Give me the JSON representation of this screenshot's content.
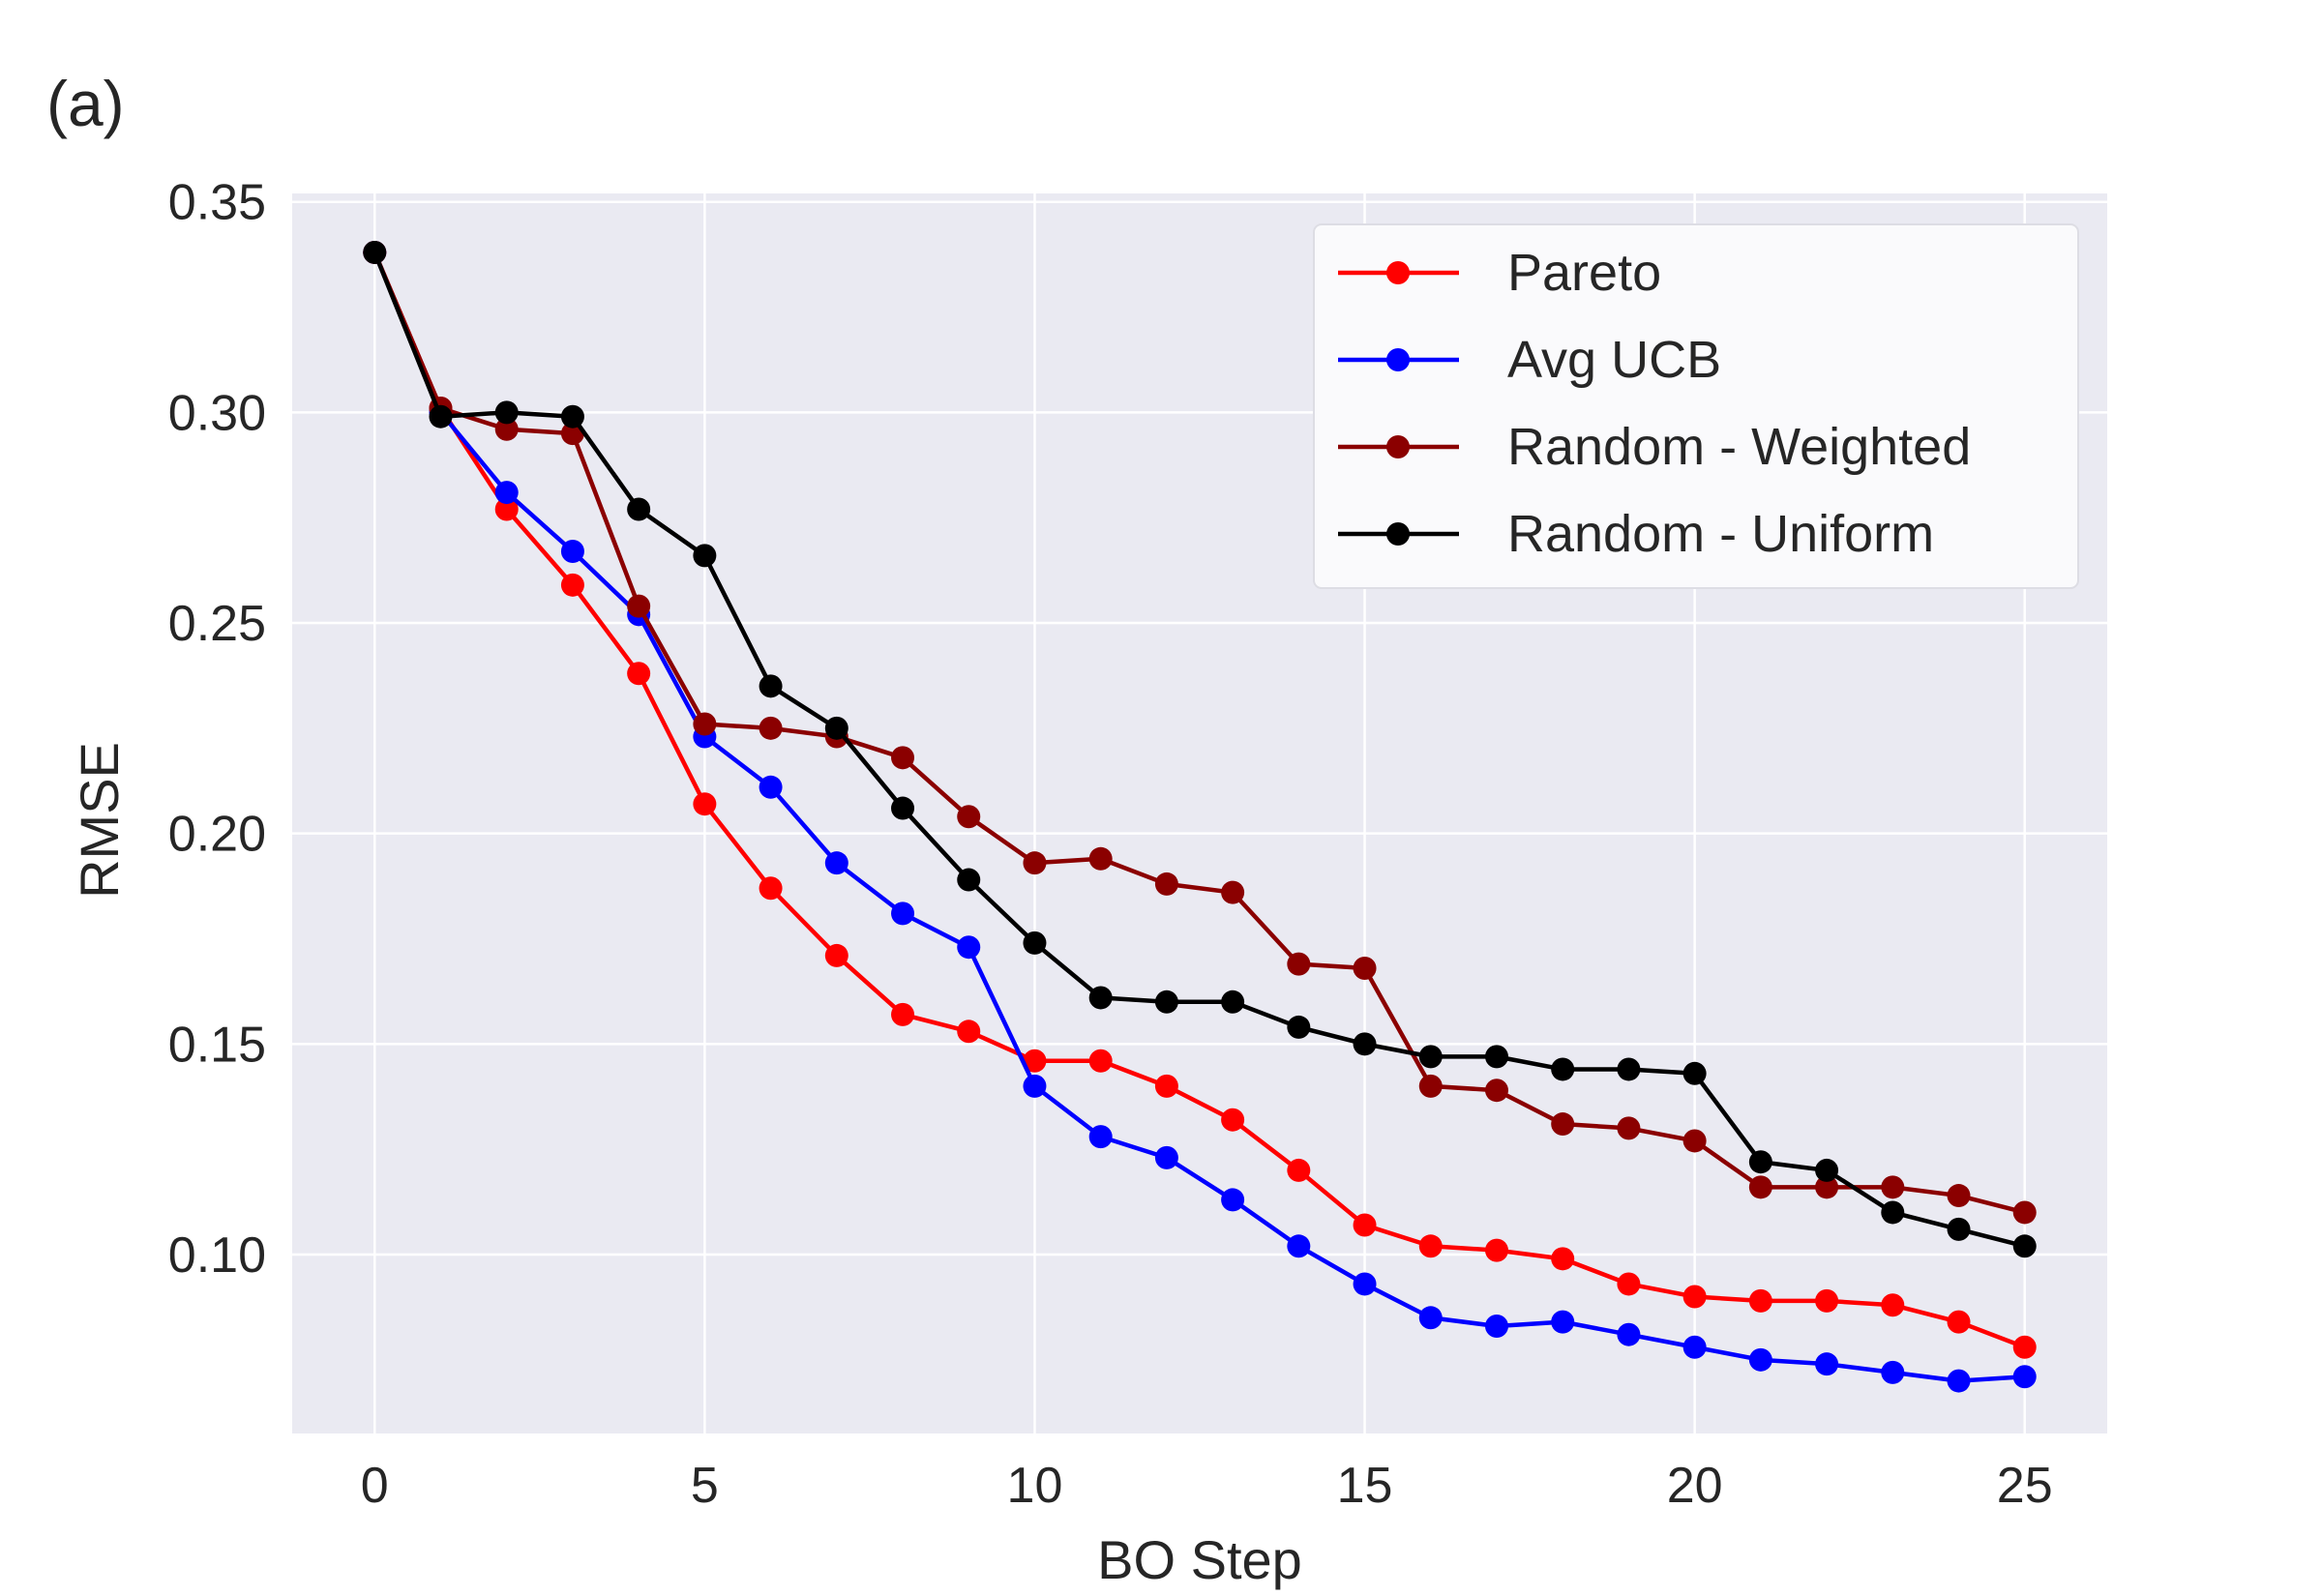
{
  "panel_label": "(a)",
  "colors": {
    "background": "#eaeaf2",
    "grid": "#ffffff",
    "Pareto": "#ff0000",
    "Avg UCB": "#0000ff",
    "Random - Weighted": "#8b0000",
    "Random - Uniform": "#000000"
  },
  "chart_data": {
    "type": "line",
    "title": "",
    "xlabel": "BO Step",
    "ylabel": "RMSE",
    "xlim": [
      -1.25,
      26.25
    ],
    "ylim": [
      0.0575,
      0.352
    ],
    "xticks": [
      0,
      5,
      10,
      15,
      20,
      25
    ],
    "xtick_labels": [
      "0",
      "5",
      "10",
      "15",
      "20",
      "25"
    ],
    "yticks": [
      0.1,
      0.15,
      0.2,
      0.25,
      0.3,
      0.35
    ],
    "ytick_labels": [
      "0.10",
      "0.15",
      "0.20",
      "0.25",
      "0.30",
      "0.35"
    ],
    "grid": true,
    "legend_position": "top-right",
    "x": [
      0,
      1,
      2,
      3,
      4,
      5,
      6,
      7,
      8,
      9,
      10,
      11,
      12,
      13,
      14,
      15,
      16,
      17,
      18,
      19,
      20,
      21,
      22,
      23,
      24,
      25
    ],
    "series": [
      {
        "name": "Pareto",
        "values": [
          0.338,
          0.301,
          0.277,
          0.259,
          0.238,
          0.207,
          0.187,
          0.171,
          0.157,
          0.153,
          0.146,
          0.146,
          0.14,
          0.132,
          0.12,
          0.107,
          0.102,
          0.101,
          0.099,
          0.093,
          0.09,
          0.089,
          0.089,
          0.088,
          0.084,
          0.078
        ]
      },
      {
        "name": "Avg UCB",
        "values": [
          0.338,
          0.3,
          0.281,
          0.267,
          0.252,
          0.223,
          0.211,
          0.193,
          0.181,
          0.173,
          0.14,
          0.128,
          0.123,
          0.113,
          0.102,
          0.093,
          0.085,
          0.083,
          0.084,
          0.081,
          0.078,
          0.075,
          0.074,
          0.072,
          0.07,
          0.071
        ]
      },
      {
        "name": "Random - Weighted",
        "values": [
          0.338,
          0.301,
          0.296,
          0.295,
          0.254,
          0.226,
          0.225,
          0.223,
          0.218,
          0.204,
          0.193,
          0.194,
          0.188,
          0.186,
          0.169,
          0.168,
          0.14,
          0.139,
          0.131,
          0.13,
          0.127,
          0.116,
          0.116,
          0.116,
          0.114,
          0.11
        ]
      },
      {
        "name": "Random - Uniform",
        "values": [
          0.338,
          0.299,
          0.3,
          0.299,
          0.277,
          0.266,
          0.235,
          0.225,
          0.206,
          0.189,
          0.174,
          0.161,
          0.16,
          0.16,
          0.154,
          0.15,
          0.147,
          0.147,
          0.144,
          0.144,
          0.143,
          0.122,
          0.12,
          0.11,
          0.106,
          0.102
        ]
      }
    ]
  }
}
